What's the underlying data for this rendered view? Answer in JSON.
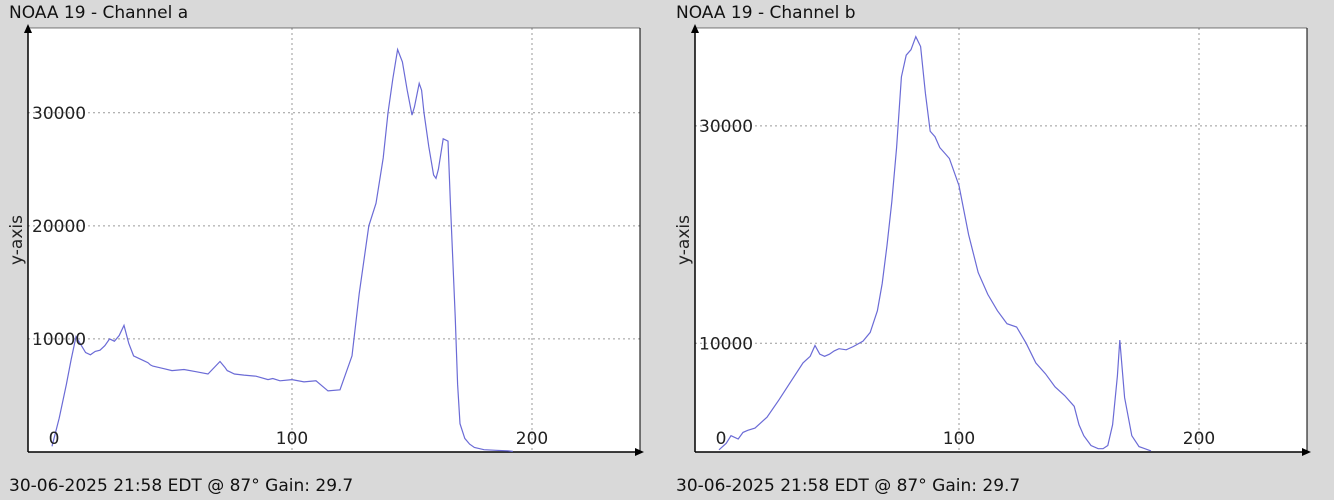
{
  "chart_data": [
    {
      "type": "line",
      "title": "NOAA 19 - Channel a",
      "ylabel": "y-axis",
      "xlabel": "",
      "footer": "30-06-2025 21:58 EDT @ 87° Gain: 29.7",
      "xlim": [
        -10,
        245
      ],
      "ylim": [
        0,
        37500
      ],
      "x_ticks": [
        0,
        100,
        200
      ],
      "y_ticks": [
        10000,
        20000,
        30000
      ],
      "grid": true,
      "series": [
        {
          "color": "#6b6bd6",
          "x": [
            0,
            3,
            6,
            8,
            10,
            12,
            14,
            16,
            18,
            20,
            22,
            24,
            26,
            28,
            30,
            32,
            34,
            36,
            38,
            40,
            41,
            42,
            44,
            46,
            50,
            55,
            60,
            65,
            70,
            72,
            73,
            74,
            76,
            80,
            85,
            90,
            92,
            95,
            100,
            105,
            110,
            115,
            120,
            125,
            128,
            132,
            135,
            138,
            140,
            142,
            144,
            146,
            148,
            150,
            151,
            153,
            154,
            155,
            157,
            159,
            160,
            161,
            163,
            165,
            166,
            168,
            169,
            170,
            172,
            174,
            176,
            178,
            180,
            185,
            190,
            192
          ],
          "y": [
            500,
            3000,
            6000,
            8200,
            10200,
            9500,
            8800,
            8600,
            8900,
            9000,
            9400,
            10000,
            9800,
            10300,
            11200,
            9600,
            8500,
            8300,
            8100,
            7900,
            7700,
            7600,
            7500,
            7400,
            7200,
            7300,
            7100,
            6900,
            8000,
            7500,
            7200,
            7100,
            6900,
            6800,
            6700,
            6400,
            6500,
            6300,
            6400,
            6200,
            6300,
            5400,
            5500,
            8500,
            14000,
            20000,
            22000,
            26000,
            30000,
            33000,
            35600,
            34500,
            32000,
            29800,
            30500,
            32600,
            32000,
            30000,
            27000,
            24500,
            24200,
            25000,
            27700,
            27500,
            22000,
            12000,
            6000,
            2500,
            1200,
            700,
            400,
            300,
            200,
            150,
            100,
            50
          ]
        }
      ]
    },
    {
      "type": "line",
      "title": "NOAA 19 - Channel b",
      "ylabel": "y-axis",
      "xlabel": "",
      "footer": "30-06-2025 21:58 EDT @ 87° Gain: 29.7",
      "xlim": [
        -10,
        245
      ],
      "ylim": [
        0,
        39000
      ],
      "x_ticks": [
        0,
        100,
        200
      ],
      "y_ticks": [
        10000,
        30000
      ],
      "grid": true,
      "series": [
        {
          "color": "#6b6bd6",
          "x": [
            0,
            3,
            5,
            8,
            10,
            12,
            15,
            20,
            25,
            30,
            35,
            38,
            40,
            42,
            44,
            46,
            48,
            50,
            53,
            56,
            60,
            63,
            66,
            68,
            70,
            72,
            74,
            76,
            78,
            80,
            82,
            84,
            86,
            88,
            90,
            92,
            94,
            96,
            100,
            104,
            108,
            112,
            116,
            120,
            124,
            128,
            132,
            136,
            140,
            144,
            148,
            150,
            152,
            155,
            158,
            160,
            162,
            164,
            166,
            167,
            169,
            172,
            175,
            180
          ],
          "y": [
            200,
            800,
            1500,
            1200,
            1800,
            2000,
            2200,
            3200,
            4800,
            6500,
            8200,
            8800,
            9800,
            9000,
            8800,
            9000,
            9300,
            9500,
            9400,
            9700,
            10200,
            11000,
            13000,
            15500,
            19000,
            23000,
            28000,
            34500,
            36500,
            37000,
            38200,
            37300,
            33000,
            29500,
            29000,
            28000,
            27500,
            27000,
            24500,
            20000,
            16500,
            14500,
            13000,
            11800,
            11500,
            10000,
            8200,
            7200,
            6000,
            5200,
            4200,
            2500,
            1500,
            600,
            300,
            300,
            600,
            2500,
            7000,
            10300,
            5000,
            1500,
            500,
            100
          ]
        }
      ]
    }
  ]
}
